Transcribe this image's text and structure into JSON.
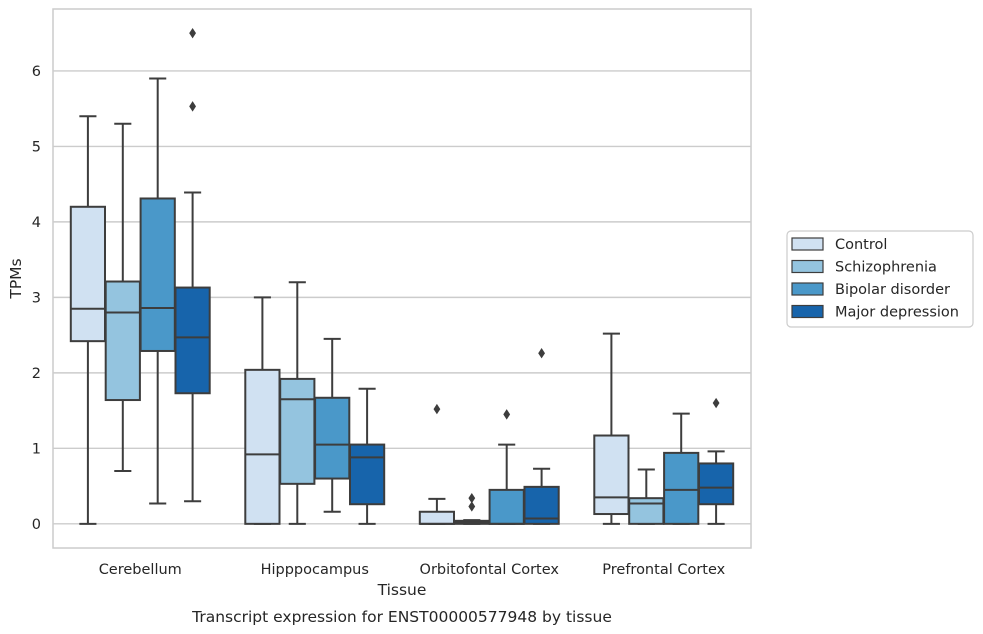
{
  "chart_data": {
    "type": "box",
    "caption": "Transcript expression for ENST00000577948 by tissue",
    "xlabel": "Tissue",
    "ylabel": "TPMs",
    "ylim": [
      -0.32,
      6.82
    ],
    "yticks": [
      0,
      1,
      2,
      3,
      4,
      5,
      6
    ],
    "grid": "horizontal",
    "legend_position": "right",
    "categories": [
      "Cerebellum",
      "Hipppocampus",
      "Orbitofontal Cortex",
      "Prefrontal Cortex"
    ],
    "series": [
      {
        "name": "Control",
        "color": "#d0e1f2",
        "boxes": [
          {
            "whislo": 0.0,
            "q1": 2.42,
            "med": 2.85,
            "q3": 4.2,
            "whishi": 5.4,
            "fliers": []
          },
          {
            "whislo": 0.0,
            "q1": 0.0,
            "med": 0.92,
            "q3": 2.04,
            "whishi": 3.0,
            "fliers": []
          },
          {
            "whislo": 0.0,
            "q1": 0.0,
            "med": 0.0,
            "q3": 0.16,
            "whishi": 0.33,
            "fliers": [
              1.52
            ]
          },
          {
            "whislo": 0.0,
            "q1": 0.13,
            "med": 0.35,
            "q3": 1.17,
            "whishi": 2.52,
            "fliers": []
          }
        ]
      },
      {
        "name": "Schizophrenia",
        "color": "#94c4df",
        "boxes": [
          {
            "whislo": 0.7,
            "q1": 1.64,
            "med": 2.8,
            "q3": 3.21,
            "whishi": 5.3,
            "fliers": []
          },
          {
            "whislo": 0.0,
            "q1": 0.53,
            "med": 1.65,
            "q3": 1.92,
            "whishi": 3.2,
            "fliers": []
          },
          {
            "whislo": 0.0,
            "q1": 0.0,
            "med": 0.02,
            "q3": 0.04,
            "whishi": 0.05,
            "fliers": [
              0.23,
              0.34
            ]
          },
          {
            "whislo": 0.0,
            "q1": 0.0,
            "med": 0.27,
            "q3": 0.34,
            "whishi": 0.72,
            "fliers": []
          }
        ]
      },
      {
        "name": "Bipolar disorder",
        "color": "#4a98c9",
        "boxes": [
          {
            "whislo": 0.27,
            "q1": 2.29,
            "med": 2.86,
            "q3": 4.31,
            "whishi": 5.9,
            "fliers": []
          },
          {
            "whislo": 0.16,
            "q1": 0.6,
            "med": 1.05,
            "q3": 1.67,
            "whishi": 2.45,
            "fliers": []
          },
          {
            "whislo": 0.0,
            "q1": 0.0,
            "med": 0.0,
            "q3": 0.45,
            "whishi": 1.05,
            "fliers": [
              1.45
            ]
          },
          {
            "whislo": 0.0,
            "q1": 0.0,
            "med": 0.45,
            "q3": 0.94,
            "whishi": 1.46,
            "fliers": []
          }
        ]
      },
      {
        "name": "Major depression",
        "color": "#1764ab",
        "boxes": [
          {
            "whislo": 0.3,
            "q1": 1.73,
            "med": 2.47,
            "q3": 3.13,
            "whishi": 4.39,
            "fliers": [
              5.53,
              6.5
            ]
          },
          {
            "whislo": 0.0,
            "q1": 0.26,
            "med": 0.88,
            "q3": 1.05,
            "whishi": 1.79,
            "fliers": []
          },
          {
            "whislo": 0.0,
            "q1": 0.0,
            "med": 0.07,
            "q3": 0.49,
            "whishi": 0.73,
            "fliers": [
              2.26
            ]
          },
          {
            "whislo": 0.0,
            "q1": 0.26,
            "med": 0.48,
            "q3": 0.8,
            "whishi": 0.96,
            "fliers": [
              1.6
            ]
          }
        ]
      }
    ]
  }
}
